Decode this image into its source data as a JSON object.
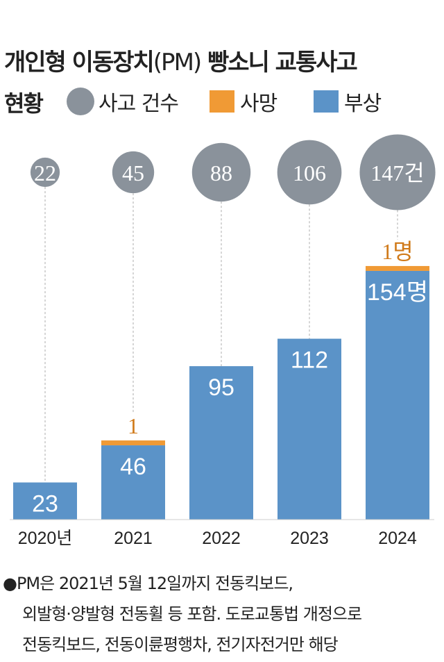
{
  "title": {
    "line1_a": "개인형 이동장치",
    "line1_b": "(PM)",
    "line1_c": " 빵소니 교통사고",
    "line2": "현황"
  },
  "legend": [
    {
      "label": "사고 건수",
      "color": "#8a929b"
    },
    {
      "label": "사망",
      "color": "#f09a35"
    },
    {
      "label": "부상",
      "color": "#5b93c8"
    }
  ],
  "chart_data": {
    "type": "bar",
    "stacked": true,
    "categories": [
      "2020년",
      "2021",
      "2022",
      "2023",
      "2024"
    ],
    "series": [
      {
        "name": "부상",
        "values": [
          23,
          46,
          95,
          112,
          154
        ],
        "color": "#5b93c8"
      },
      {
        "name": "사망",
        "values": [
          0,
          1,
          0,
          0,
          1
        ],
        "color": "#f09a35"
      }
    ],
    "bubbles": {
      "name": "사고 건수",
      "values": [
        22,
        45,
        88,
        106,
        147
      ],
      "color": "#8a929b"
    },
    "labels": {
      "injury": [
        "23",
        "46",
        "95",
        "112",
        "154명"
      ],
      "death": [
        "",
        "1",
        "",
        "",
        "1명"
      ],
      "accidents": [
        "22",
        "45",
        "88",
        "106",
        "147건"
      ]
    },
    "ylim": [
      0,
      160
    ]
  },
  "note": {
    "bullet": "●",
    "lines": [
      "PM은 2021년 5월 12일까지 전동킥보드,",
      "외발형·양발형 전동휠 등 포함. 도로교통법 개정으로",
      "전동킥보드, 전동이륜평행차, 전기자전거만 해당"
    ]
  }
}
